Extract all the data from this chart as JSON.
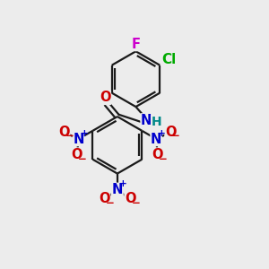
{
  "bg_color": "#ececec",
  "colors": {
    "N": "#0000cc",
    "O": "#cc0000",
    "F": "#cc00cc",
    "Cl": "#00aa00",
    "H": "#008888",
    "bond": "#1a1a1a"
  },
  "lw": 1.6,
  "fs": 10.5
}
